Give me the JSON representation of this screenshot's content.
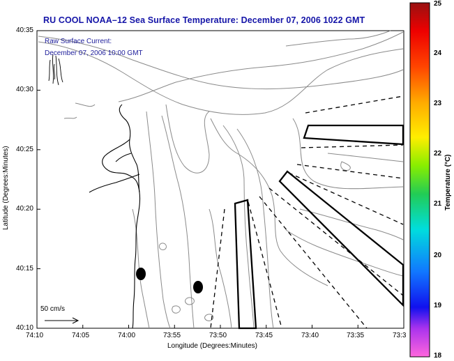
{
  "title": "RU COOL  NOAA–12  Sea Surface Temperature:  December 07, 2006 1022 GMT",
  "overlay": {
    "line1": "Raw Surface Current:",
    "line2": "December 07, 2006 10:00 GMT"
  },
  "scale": {
    "label": "50 cm/s"
  },
  "axes": {
    "xlabel": "Longitude (Degrees:Minutes)",
    "ylabel": "Latitude (Degrees:Minutes)",
    "xticks": [
      "74:10",
      "74:05",
      "74:00",
      "73:55",
      "73:50",
      "73:45",
      "73:40",
      "73:35",
      "73:3"
    ],
    "yticks": [
      "40:35",
      "40:30",
      "40:25",
      "40:20",
      "40:15",
      "40:10"
    ]
  },
  "colorbar": {
    "label": "Temperature (°C)",
    "ticks": [
      "25",
      "24",
      "23",
      "22",
      "21",
      "20",
      "19",
      "18"
    ],
    "range": [
      18,
      25
    ],
    "colors": [
      "#ff66dd",
      "#9933ee",
      "#1111ee",
      "#1188ff",
      "#00dddd",
      "#22cc44",
      "#88ee00",
      "#ffee00",
      "#ffaa00",
      "#ff4400",
      "#ee0000",
      "#991111"
    ]
  }
}
